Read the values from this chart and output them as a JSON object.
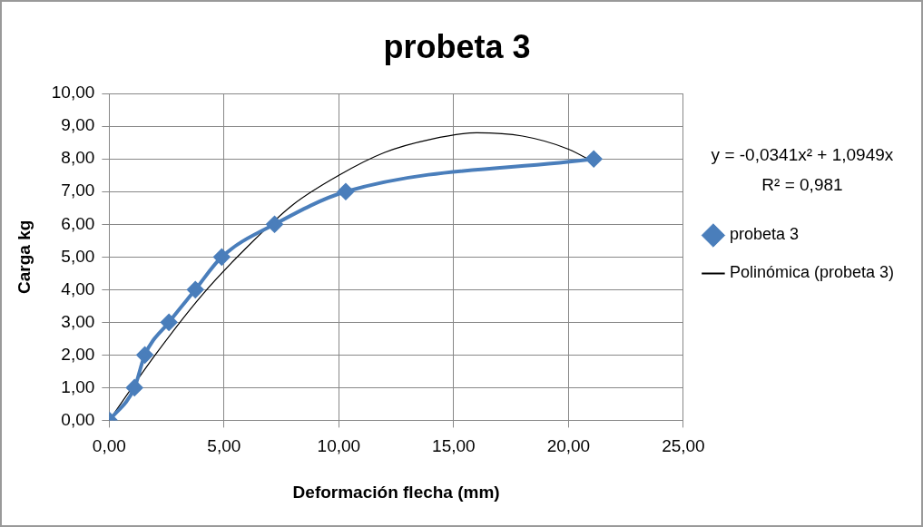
{
  "chart_data": {
    "type": "line",
    "title": "probeta 3",
    "xlabel": "Deformación flecha (mm)",
    "ylabel": "Carga kg",
    "series": [
      {
        "name": "probeta 3",
        "color": "#4a7ebb",
        "marker": "diamond",
        "x": [
          0,
          1.1,
          1.55,
          2.6,
          3.75,
          4.9,
          7.2,
          10.3,
          21.1
        ],
        "values": [
          0,
          1,
          2,
          3,
          4,
          5,
          6,
          7,
          8
        ]
      },
      {
        "name": "Polinómica (probeta 3)",
        "color": "#000000",
        "marker": "none",
        "x": [
          0,
          2,
          4,
          6,
          8,
          10,
          12,
          14,
          16,
          18,
          20,
          21.1
        ],
        "values": [
          0,
          2.0,
          3.8,
          5.3,
          6.6,
          7.5,
          8.2,
          8.6,
          8.8,
          8.7,
          8.3,
          7.9
        ]
      }
    ],
    "xlim": [
      0,
      25
    ],
    "xticks": [
      {
        "value": 0,
        "label": "0,00"
      },
      {
        "value": 5,
        "label": "5,00"
      },
      {
        "value": 10,
        "label": "10,00"
      },
      {
        "value": 15,
        "label": "15,00"
      },
      {
        "value": 20,
        "label": "20,00"
      },
      {
        "value": 25,
        "label": "25,00"
      }
    ],
    "ylim": [
      0,
      10
    ],
    "yticks": [
      {
        "value": 0,
        "label": "0,00"
      },
      {
        "value": 1,
        "label": "1,00"
      },
      {
        "value": 2,
        "label": "2,00"
      },
      {
        "value": 3,
        "label": "3,00"
      },
      {
        "value": 4,
        "label": "4,00"
      },
      {
        "value": 5,
        "label": "5,00"
      },
      {
        "value": 6,
        "label": "6,00"
      },
      {
        "value": 7,
        "label": "7,00"
      },
      {
        "value": 8,
        "label": "8,00"
      },
      {
        "value": 9,
        "label": "9,00"
      },
      {
        "value": 10,
        "label": "10,00"
      }
    ],
    "annotations": [
      "y = -0,0341x² + 1,0949x",
      "R² = 0,981"
    ],
    "grid": true,
    "legend": "right",
    "line_style": "solid"
  }
}
